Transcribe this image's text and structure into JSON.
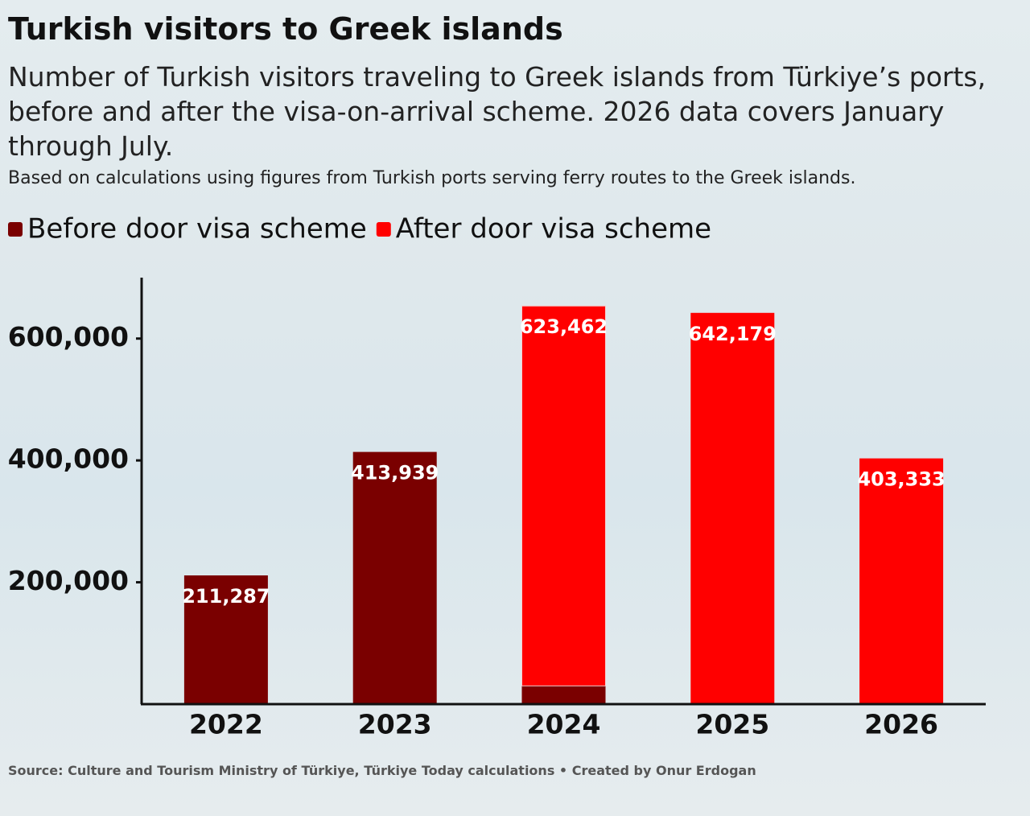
{
  "chart_data": {
    "type": "stacked-bar",
    "title": "Turkish visitors to Greek islands",
    "subtitle": "Number of Turkish visitors traveling to Greek islands from Türkiye’s ports, before and after the visa-on-arrival scheme. 2026 data covers January through July.",
    "note": "Based on calculations using figures from Turkish ports serving ferry routes to the Greek islands.",
    "source": "Source: Culture and Tourism Ministry of Türkiye, Türkiye Today calculations • Created by Onur Erdogan",
    "categories": [
      "2022",
      "2023",
      "2024",
      "2025",
      "2026"
    ],
    "series": [
      {
        "name": "Before door visa scheme",
        "color": "#7a0000",
        "values": [
          211287,
          413939,
          30000,
          null,
          null
        ],
        "value_labels": [
          "211,287",
          "413,939",
          null,
          null,
          null
        ]
      },
      {
        "name": "After door visa scheme",
        "color": "#ff0000",
        "values": [
          null,
          null,
          623462,
          642179,
          403333
        ],
        "value_labels": [
          null,
          null,
          "623,462",
          "642,179",
          "403,333"
        ]
      }
    ],
    "ylim": [
      0,
      700000
    ],
    "yticks": [
      {
        "value": 200000,
        "label": "200,000"
      },
      {
        "value": 400000,
        "label": "400,000"
      },
      {
        "value": 600000,
        "label": "600,000"
      }
    ],
    "legend": "top-left"
  }
}
